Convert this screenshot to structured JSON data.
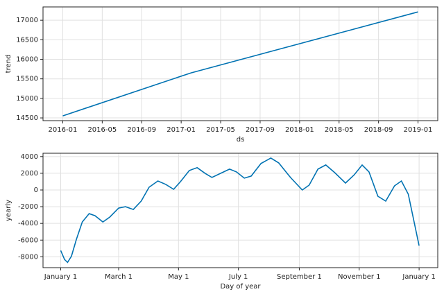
{
  "chart_data": [
    {
      "type": "line",
      "xlabel": "ds",
      "ylabel": "trend",
      "x": [
        "2016-01",
        "2017-02",
        "2019-01"
      ],
      "series": [
        {
          "name": "trend",
          "color": "#0072B2",
          "values": [
            14553,
            15652,
            17213
          ]
        }
      ],
      "xlim": [
        "2015-11",
        "2019-03"
      ],
      "ylim": [
        14430,
        17340
      ],
      "xticks": [
        "2016-01",
        "2016-05",
        "2016-09",
        "2017-01",
        "2017-05",
        "2017-09",
        "2018-01",
        "2018-05",
        "2018-09",
        "2019-01"
      ],
      "yticks": [
        14500,
        15000,
        15500,
        16000,
        16500,
        17000
      ],
      "grid": true
    },
    {
      "type": "line",
      "xlabel": "Day of year",
      "ylabel": "yearly",
      "x": [
        0,
        4,
        7,
        11,
        16,
        22,
        29,
        35,
        43,
        50,
        59,
        66,
        74,
        82,
        90,
        99,
        107,
        115,
        122,
        131,
        139,
        147,
        154,
        163,
        172,
        179,
        187,
        194,
        204,
        214,
        222,
        234,
        246,
        253,
        262,
        270,
        279,
        290,
        299,
        307,
        314,
        323,
        331,
        340,
        347,
        354,
        365
      ],
      "series": [
        {
          "name": "yearly",
          "color": "#0072B2",
          "values": [
            -7250,
            -8330,
            -8670,
            -7920,
            -5920,
            -3830,
            -2830,
            -3080,
            -3830,
            -3250,
            -2170,
            -2000,
            -2330,
            -1330,
            330,
            1080,
            670,
            80,
            1000,
            2330,
            2670,
            2000,
            1500,
            2000,
            2500,
            2170,
            1420,
            1670,
            3170,
            3830,
            3250,
            1500,
            0,
            580,
            2500,
            3000,
            2080,
            830,
            1830,
            3000,
            2170,
            -750,
            -1330,
            500,
            1080,
            -500,
            -6670
          ]
        }
      ],
      "xlim": [
        -18,
        384
      ],
      "ylim": [
        -9300,
        4400
      ],
      "xticks": [
        {
          "value": 0,
          "label": "January 1"
        },
        {
          "value": 59,
          "label": "March 1"
        },
        {
          "value": 120,
          "label": "May 1"
        },
        {
          "value": 181,
          "label": "July 1"
        },
        {
          "value": 243,
          "label": "September 1"
        },
        {
          "value": 304,
          "label": "November 1"
        },
        {
          "value": 365,
          "label": "January 1"
        }
      ],
      "yticks": [
        -8000,
        -6000,
        -4000,
        -2000,
        0,
        2000,
        4000
      ],
      "grid": true
    }
  ]
}
